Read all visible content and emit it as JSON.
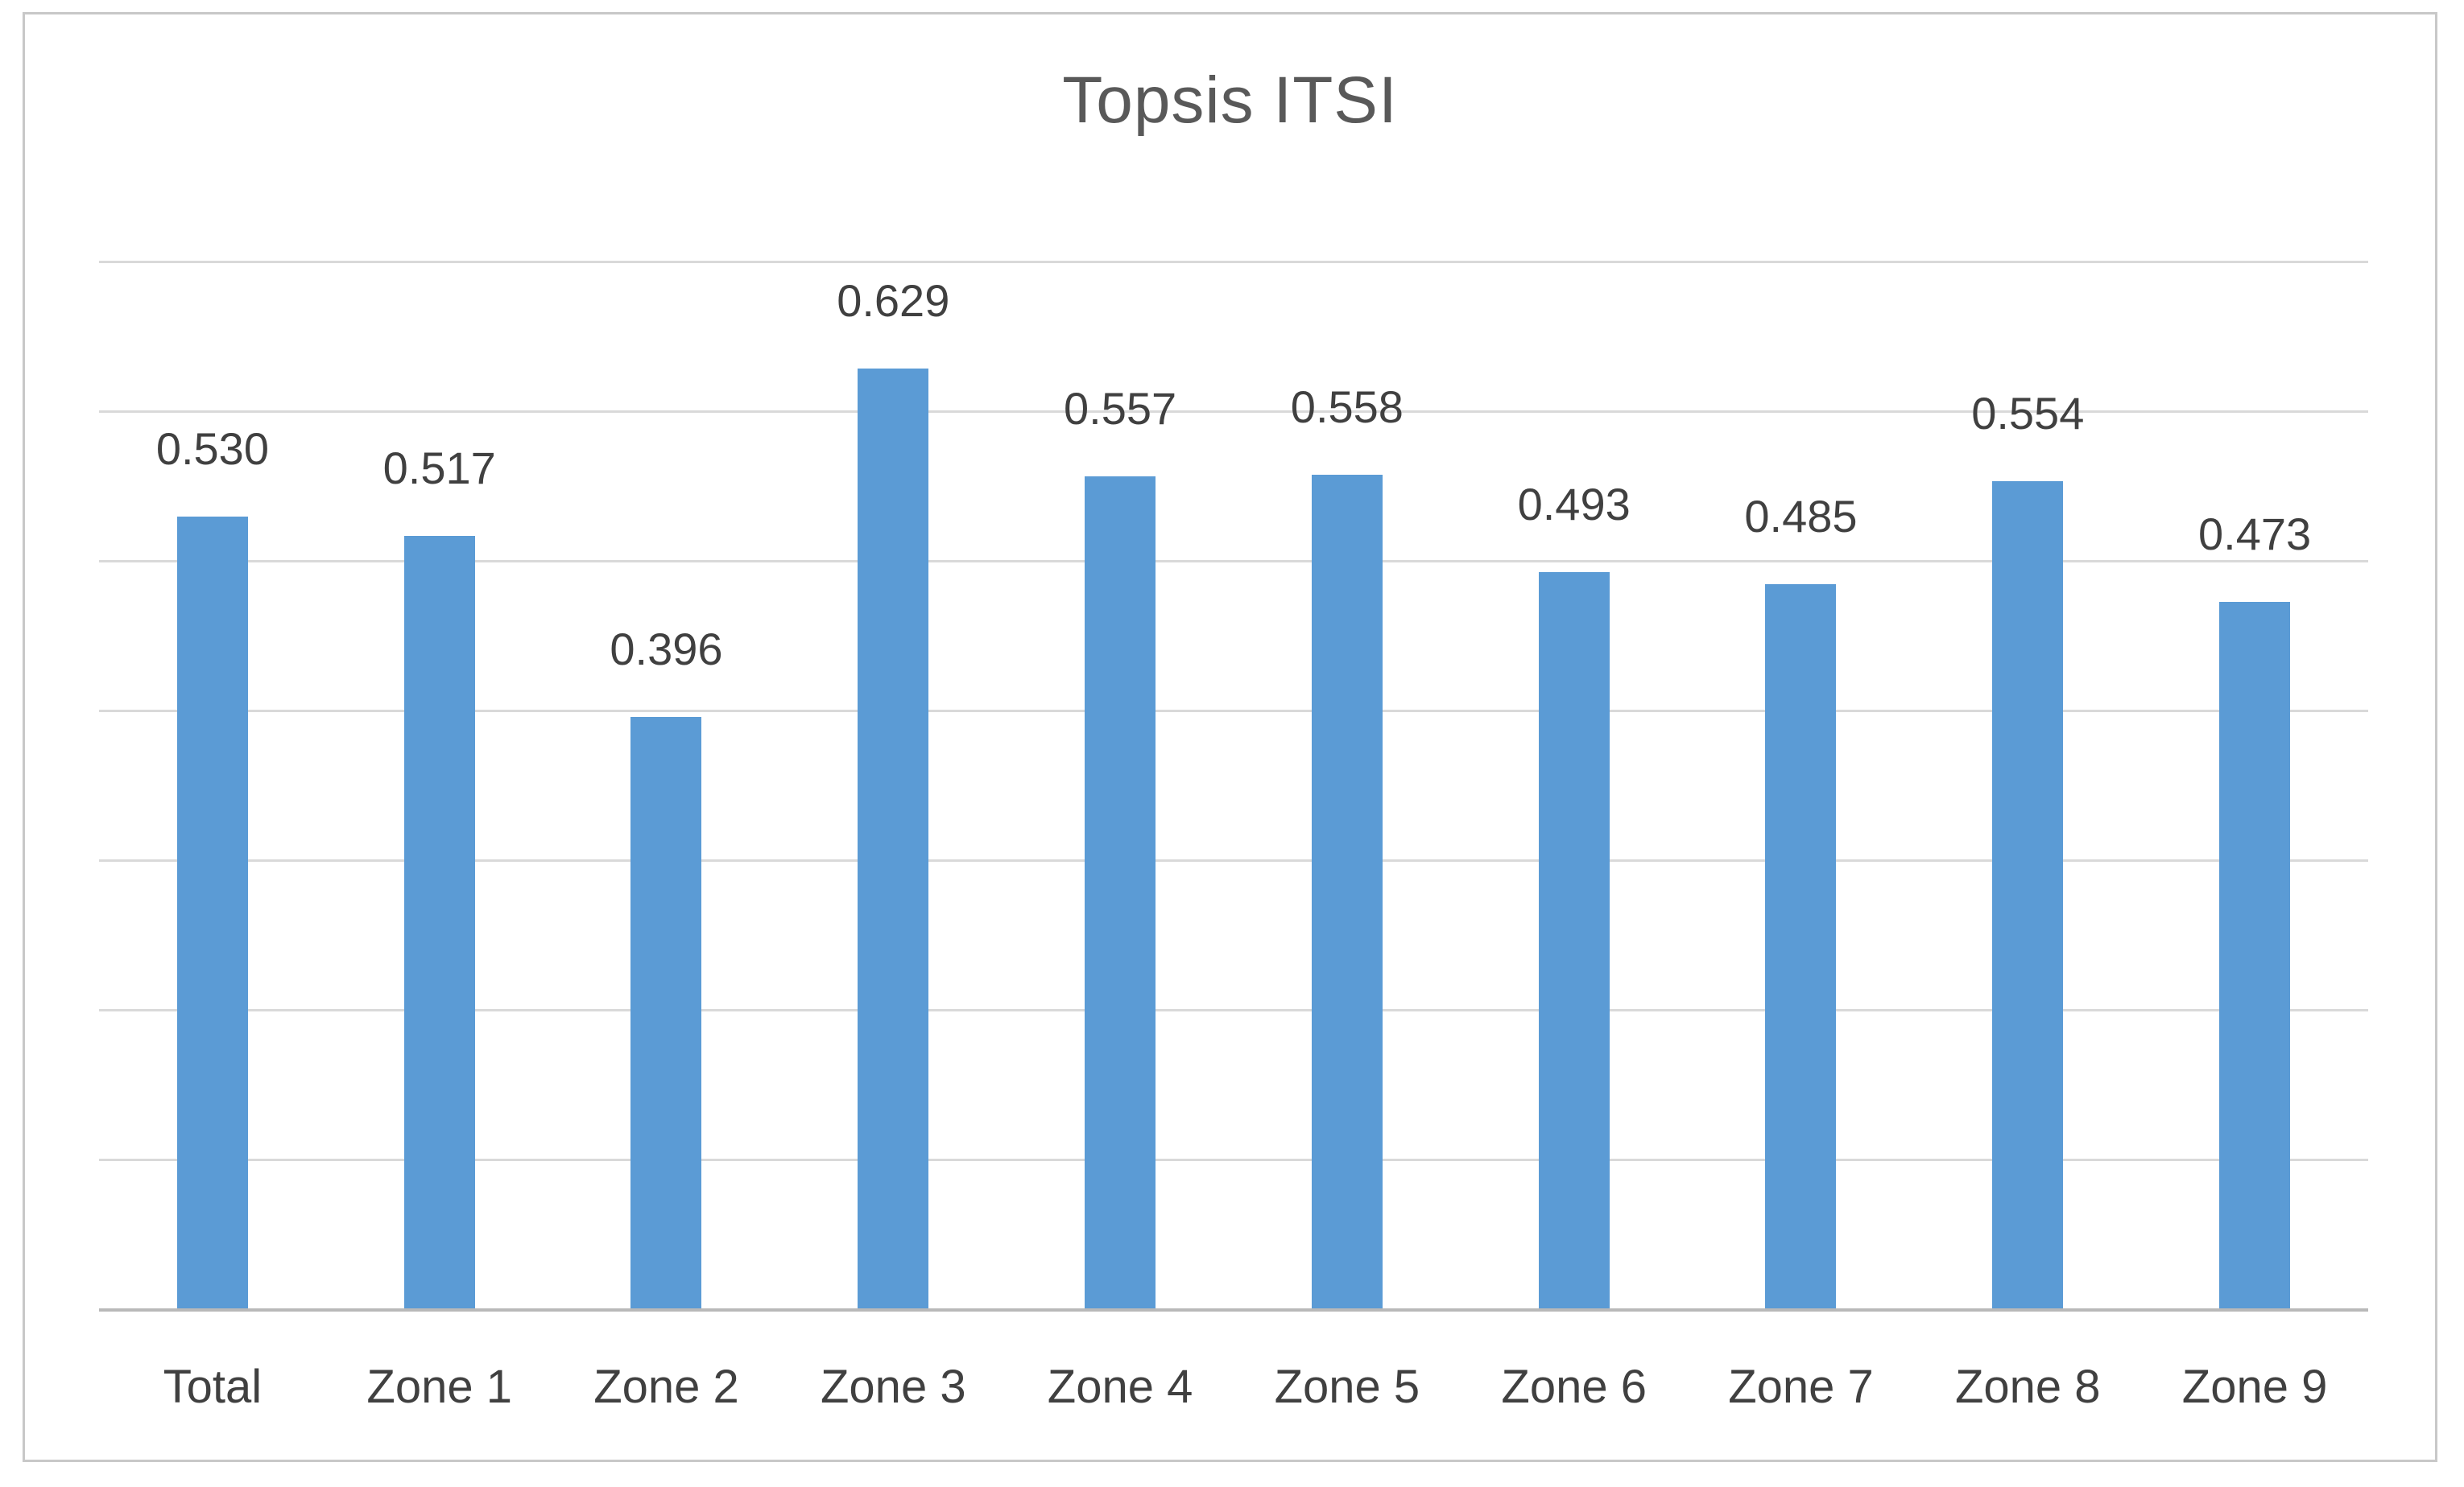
{
  "chart_data": {
    "type": "bar",
    "title": "Topsis ITSI",
    "categories": [
      "Total",
      "Zone 1",
      "Zone 2",
      "Zone 3",
      "Zone 4",
      "Zone 5",
      "Zone 6",
      "Zone 7",
      "Zone 8",
      "Zone 9"
    ],
    "values": [
      0.53,
      0.517,
      0.396,
      0.629,
      0.557,
      0.558,
      0.493,
      0.485,
      0.554,
      0.473
    ],
    "value_labels": [
      "0.530",
      "0.517",
      "0.396",
      "0.629",
      "0.557",
      "0.558",
      "0.493",
      "0.485",
      "0.554",
      "0.473"
    ],
    "xlabel": "",
    "ylabel": "",
    "ylim": [
      0,
      0.7
    ],
    "gridline_step": 0.1,
    "grid": "horizontal",
    "legend": "none",
    "y_axis_tick_labels_visible": false,
    "bar_color": "#5B9BD5",
    "gridline_color": "#D9D9D9",
    "axis_line_color": "#B9B9B9",
    "title_color": "#595959",
    "label_color": "#404040",
    "frame_border_color": "#C8C8C8"
  }
}
